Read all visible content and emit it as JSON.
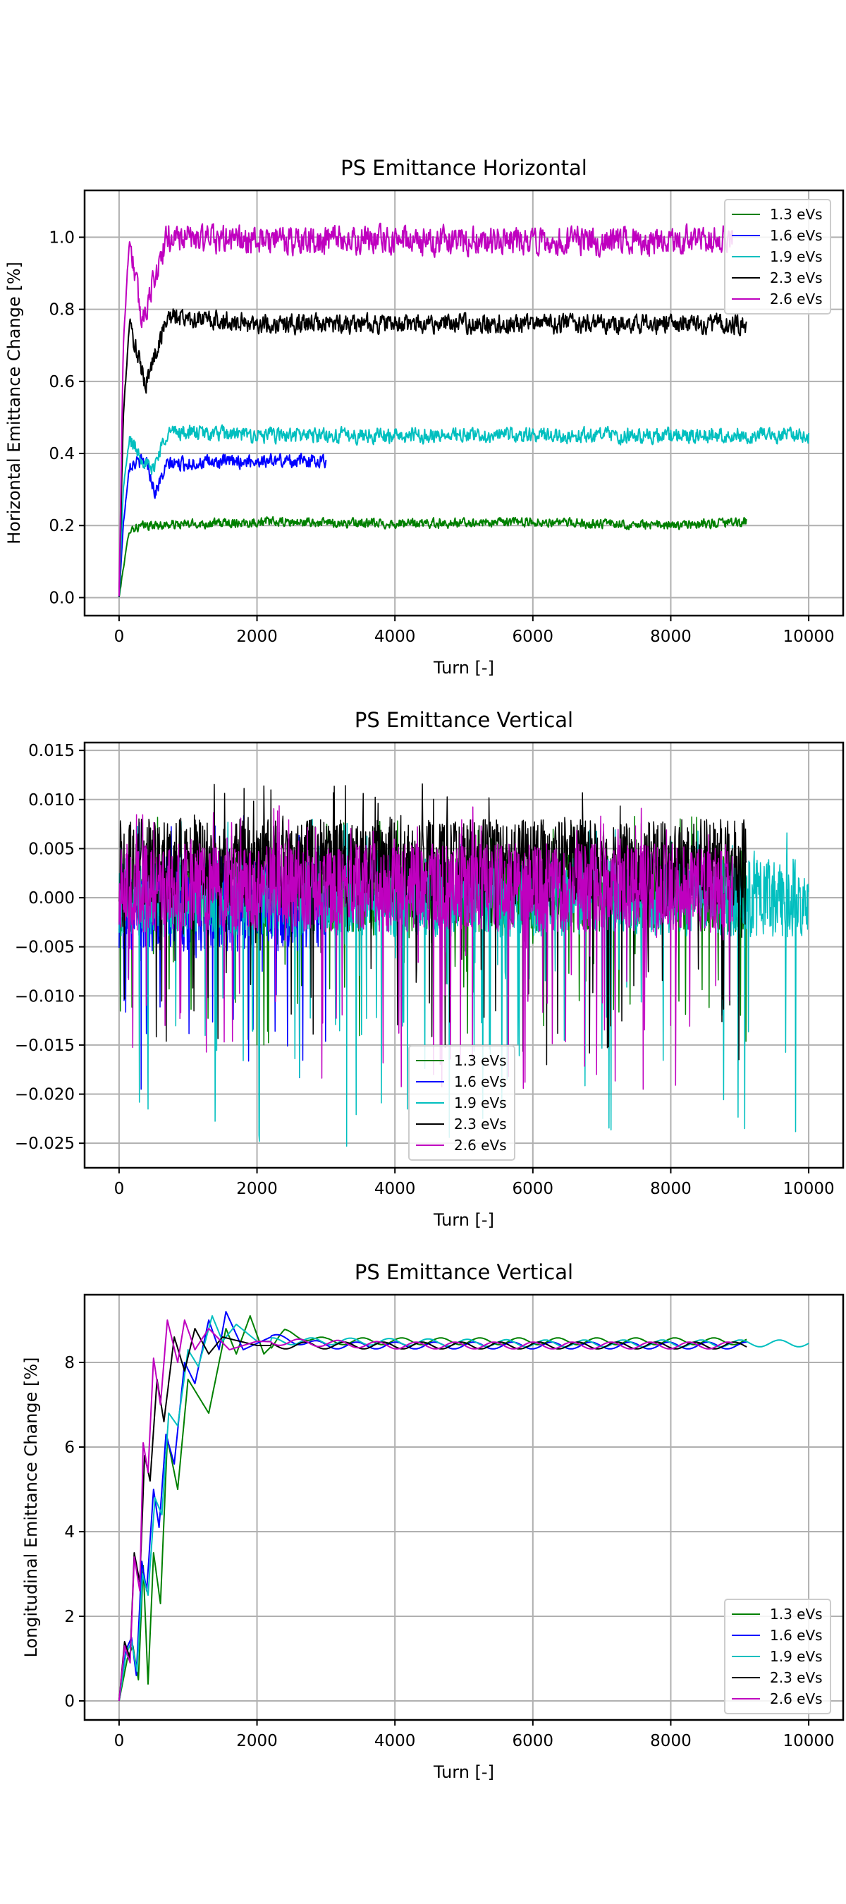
{
  "figure": {
    "background": "#ffffff"
  },
  "chart_data": [
    {
      "type": "line",
      "title": "PS Emittance Horizontal",
      "xlabel": "Turn [-]",
      "ylabel": "Horizontal Emittance Change [%]",
      "xlim": [
        -500,
        10500
      ],
      "ylim": [
        -0.05,
        1.13
      ],
      "xticks": [
        0,
        2000,
        4000,
        6000,
        8000,
        10000
      ],
      "xtick_labels": [
        "0",
        "2000",
        "4000",
        "6000",
        "8000",
        "10000"
      ],
      "yticks": [
        0.0,
        0.2,
        0.4,
        0.6,
        0.8,
        1.0
      ],
      "ytick_labels": [
        "0.0",
        "0.2",
        "0.4",
        "0.6",
        "0.8",
        "1.0"
      ],
      "grid": true,
      "legend": {
        "placement": "upper right"
      },
      "series": [
        {
          "name": "1.3 eVs",
          "color": "#008000",
          "end": 9100,
          "settle": 0.205,
          "noise": 0.007,
          "dip": {
            "x": 50,
            "y": 0.07
          },
          "points": [
            [
              0,
              0.0
            ],
            [
              60,
              0.08
            ],
            [
              150,
              0.19
            ],
            [
              400,
              0.2
            ],
            [
              2000,
              0.21
            ],
            [
              4000,
              0.205
            ],
            [
              6000,
              0.21
            ],
            [
              8000,
              0.2
            ],
            [
              9100,
              0.21
            ]
          ]
        },
        {
          "name": "1.6 eVs",
          "color": "#0000ff",
          "end": 3000,
          "settle": 0.38,
          "noise": 0.01,
          "dip": {
            "x": 520,
            "y": 0.29
          },
          "points": [
            [
              0,
              0.0
            ],
            [
              60,
              0.2
            ],
            [
              150,
              0.37
            ],
            [
              400,
              0.38
            ],
            [
              520,
              0.29
            ],
            [
              700,
              0.37
            ],
            [
              2000,
              0.38
            ],
            [
              3000,
              0.38
            ]
          ]
        },
        {
          "name": "1.9 eVs",
          "color": "#00bfbf",
          "end": 10000,
          "settle": 0.45,
          "noise": 0.012,
          "dip": {
            "x": 470,
            "y": 0.35
          },
          "points": [
            [
              0,
              0.0
            ],
            [
              60,
              0.3
            ],
            [
              150,
              0.44
            ],
            [
              470,
              0.35
            ],
            [
              700,
              0.46
            ],
            [
              2000,
              0.45
            ],
            [
              5000,
              0.45
            ],
            [
              8000,
              0.45
            ],
            [
              10000,
              0.45
            ]
          ]
        },
        {
          "name": "2.3 eVs",
          "color": "#000000",
          "end": 9100,
          "settle": 0.76,
          "noise": 0.015,
          "dip": {
            "x": 380,
            "y": 0.59
          },
          "points": [
            [
              0,
              0.0
            ],
            [
              60,
              0.5
            ],
            [
              150,
              0.76
            ],
            [
              380,
              0.59
            ],
            [
              700,
              0.78
            ],
            [
              2000,
              0.76
            ],
            [
              5000,
              0.76
            ],
            [
              8000,
              0.76
            ],
            [
              9100,
              0.76
            ]
          ]
        },
        {
          "name": "2.6 eVs",
          "color": "#bf00bf",
          "end": 8900,
          "settle": 0.99,
          "noise": 0.022,
          "dip": {
            "x": 330,
            "y": 0.77
          },
          "points": [
            [
              0,
              0.0
            ],
            [
              60,
              0.7
            ],
            [
              150,
              1.0
            ],
            [
              330,
              0.77
            ],
            [
              700,
              1.0
            ],
            [
              2000,
              0.99
            ],
            [
              5000,
              0.99
            ],
            [
              8000,
              0.99
            ],
            [
              8900,
              1.0
            ]
          ]
        }
      ]
    },
    {
      "type": "line",
      "title": "PS Emittance Vertical",
      "xlabel": "Turn [-]",
      "ylabel": "",
      "xlim": [
        -500,
        10500
      ],
      "ylim": [
        -0.0275,
        0.0158
      ],
      "xticks": [
        0,
        2000,
        4000,
        6000,
        8000,
        10000
      ],
      "xtick_labels": [
        "0",
        "2000",
        "4000",
        "6000",
        "8000",
        "10000"
      ],
      "yticks": [
        -0.025,
        -0.02,
        -0.015,
        -0.01,
        -0.005,
        0.0,
        0.005,
        0.01,
        0.015
      ],
      "ytick_labels": [
        "−0.025",
        "−0.020",
        "−0.015",
        "−0.010",
        "−0.005",
        "0.000",
        "0.005",
        "0.010",
        "0.015"
      ],
      "grid": true,
      "legend": {
        "placement": "lower center"
      },
      "series": [
        {
          "name": "1.3 eVs",
          "color": "#008000",
          "end": 9100,
          "center": 0.0005,
          "amp": 0.004,
          "spike_min": -0.015
        },
        {
          "name": "1.6 eVs",
          "color": "#0000ff",
          "end": 3000,
          "center": -0.0005,
          "amp": 0.005,
          "spike_min": -0.0195
        },
        {
          "name": "1.9 eVs",
          "color": "#00bfbf",
          "end": 10000,
          "center": 0.0,
          "amp": 0.004,
          "spike_min": -0.0253
        },
        {
          "name": "2.3 eVs",
          "color": "#000000",
          "end": 9100,
          "center": 0.0035,
          "amp": 0.0045,
          "spike_min": -0.017
        },
        {
          "name": "2.6 eVs",
          "color": "#bf00bf",
          "end": 8900,
          "center": 0.001,
          "amp": 0.0045,
          "spike_min": -0.0195
        }
      ]
    },
    {
      "type": "line",
      "title": "PS Emittance Vertical",
      "xlabel": "Turn [-]",
      "ylabel": "Longitudinal Emittance Change [%]",
      "xlim": [
        -500,
        10500
      ],
      "ylim": [
        -0.45,
        9.6
      ],
      "xticks": [
        0,
        2000,
        4000,
        6000,
        8000,
        10000
      ],
      "xtick_labels": [
        "0",
        "2000",
        "4000",
        "6000",
        "8000",
        "10000"
      ],
      "yticks": [
        0,
        2,
        4,
        6,
        8
      ],
      "ytick_labels": [
        "0",
        "2",
        "4",
        "6",
        "8"
      ],
      "grid": true,
      "legend": {
        "placement": "lower right"
      },
      "series": [
        {
          "name": "1.3 eVs",
          "color": "#008000",
          "end": 9100,
          "points": [
            [
              0,
              0.0
            ],
            [
              120,
              1.0
            ],
            [
              200,
              1.3
            ],
            [
              280,
              0.5
            ],
            [
              350,
              3.2
            ],
            [
              420,
              0.4
            ],
            [
              500,
              3.5
            ],
            [
              600,
              2.3
            ],
            [
              700,
              6.2
            ],
            [
              850,
              5.0
            ],
            [
              1000,
              7.6
            ],
            [
              1300,
              6.8
            ],
            [
              1550,
              8.8
            ],
            [
              1700,
              8.2
            ],
            [
              1900,
              9.1
            ],
            [
              2100,
              8.2
            ],
            [
              2400,
              8.7
            ],
            [
              3000,
              8.5
            ],
            [
              4000,
              8.5
            ],
            [
              6000,
              8.5
            ],
            [
              8000,
              8.5
            ],
            [
              9100,
              8.5
            ]
          ]
        },
        {
          "name": "1.6 eVs",
          "color": "#0000ff",
          "end": 9100,
          "points": [
            [
              0,
              0.0
            ],
            [
              100,
              1.2
            ],
            [
              180,
              1.5
            ],
            [
              250,
              0.6
            ],
            [
              330,
              3.3
            ],
            [
              400,
              2.6
            ],
            [
              500,
              5.0
            ],
            [
              580,
              4.1
            ],
            [
              680,
              6.3
            ],
            [
              800,
              5.6
            ],
            [
              950,
              8.0
            ],
            [
              1100,
              7.5
            ],
            [
              1300,
              9.0
            ],
            [
              1450,
              8.3
            ],
            [
              1550,
              9.2
            ],
            [
              1800,
              8.3
            ],
            [
              2200,
              8.6
            ],
            [
              3000,
              8.4
            ],
            [
              5000,
              8.4
            ],
            [
              9100,
              8.4
            ]
          ]
        },
        {
          "name": "1.9 eVs",
          "color": "#00bfbf",
          "end": 10000,
          "points": [
            [
              0,
              0.0
            ],
            [
              100,
              1.1
            ],
            [
              180,
              1.4
            ],
            [
              260,
              0.7
            ],
            [
              340,
              3.0
            ],
            [
              420,
              2.5
            ],
            [
              520,
              4.8
            ],
            [
              620,
              4.4
            ],
            [
              720,
              6.8
            ],
            [
              850,
              6.5
            ],
            [
              1000,
              8.3
            ],
            [
              1150,
              7.9
            ],
            [
              1350,
              9.1
            ],
            [
              1500,
              8.5
            ],
            [
              1700,
              8.9
            ],
            [
              2000,
              8.5
            ],
            [
              3000,
              8.5
            ],
            [
              6000,
              8.45
            ],
            [
              10000,
              8.45
            ]
          ]
        },
        {
          "name": "2.3 eVs",
          "color": "#000000",
          "end": 9100,
          "points": [
            [
              0,
              0.0
            ],
            [
              80,
              1.4
            ],
            [
              160,
              1.0
            ],
            [
              220,
              3.5
            ],
            [
              300,
              2.8
            ],
            [
              370,
              5.8
            ],
            [
              450,
              5.2
            ],
            [
              550,
              7.6
            ],
            [
              650,
              6.6
            ],
            [
              800,
              8.6
            ],
            [
              950,
              7.8
            ],
            [
              1100,
              8.8
            ],
            [
              1300,
              8.2
            ],
            [
              1500,
              8.6
            ],
            [
              2000,
              8.4
            ],
            [
              4000,
              8.4
            ],
            [
              9100,
              8.4
            ]
          ]
        },
        {
          "name": "2.6 eVs",
          "color": "#bf00bf",
          "end": 8900,
          "points": [
            [
              0,
              0.0
            ],
            [
              80,
              1.3
            ],
            [
              160,
              0.9
            ],
            [
              220,
              3.4
            ],
            [
              300,
              2.6
            ],
            [
              350,
              6.1
            ],
            [
              420,
              5.4
            ],
            [
              500,
              8.1
            ],
            [
              600,
              7.0
            ],
            [
              700,
              9.0
            ],
            [
              850,
              8.0
            ],
            [
              950,
              9.0
            ],
            [
              1100,
              8.3
            ],
            [
              1300,
              8.8
            ],
            [
              1600,
              8.3
            ],
            [
              2000,
              8.5
            ],
            [
              4000,
              8.4
            ],
            [
              8900,
              8.4
            ]
          ]
        }
      ]
    }
  ]
}
